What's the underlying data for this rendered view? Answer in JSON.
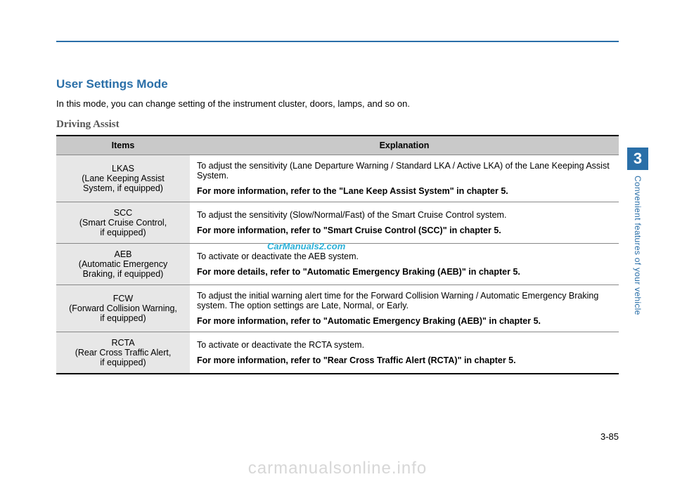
{
  "colors": {
    "accent": "#2a6fa8",
    "header_bg": "#c9c9c9",
    "item_bg": "#e7e7e7",
    "rule": "#000000",
    "watermark_small": "#2ab0d8",
    "watermark_big": "#d7d7d7"
  },
  "section_title": "User Settings Mode",
  "intro": "In this mode, you can change setting of the instrument cluster, doors, lamps, and so on.",
  "subhead": "Driving Assist",
  "table": {
    "headers": {
      "items": "Items",
      "explanation": "Explanation"
    },
    "rows": [
      {
        "abbr": "LKAS",
        "full": "(Lane Keeping Assist\nSystem, if equipped)",
        "desc": "To adjust the sensitivity (Lane Departure Warning / Standard LKA / Active LKA) of the Lane Keeping Assist System.",
        "ref": "For more information, refer to the \"Lane Keep Assist System\" in chapter 5."
      },
      {
        "abbr": "SCC",
        "full": "(Smart Cruise Control,\nif equipped)",
        "desc": "To adjust the sensitivity (Slow/Normal/Fast) of the Smart Cruise Control system.",
        "ref": "For more information, refer to \"Smart Cruise Control (SCC)\" in chapter 5."
      },
      {
        "abbr": "AEB",
        "full": "(Automatic Emergency\nBraking, if equipped)",
        "desc": "To activate or deactivate the AEB system.",
        "ref": "For more details, refer to \"Automatic Emergency Braking (AEB)\" in chapter 5."
      },
      {
        "abbr": "FCW",
        "full": "(Forward Collision Warning,\nif equipped)",
        "desc": "To adjust the initial warning alert time for the Forward Collision Warning / Automatic Emergency Braking system. The option settings are Late, Normal, or Early.",
        "ref": "For more information, refer to \"Automatic Emergency Braking (AEB)\" in chapter 5."
      },
      {
        "abbr": "RCTA",
        "full": "(Rear Cross Traffic Alert,\nif equipped)",
        "desc": "To activate or deactivate the RCTA system.",
        "ref": "For more information, refer to \"Rear Cross Traffic Alert (RCTA)\" in chapter 5."
      }
    ]
  },
  "side_tab": {
    "number": "3",
    "label": "Convenient features of your vehicle"
  },
  "page_number": "3-85",
  "watermark_small": "CarManuals2.com",
  "watermark_big": "carmanualsonline.info"
}
